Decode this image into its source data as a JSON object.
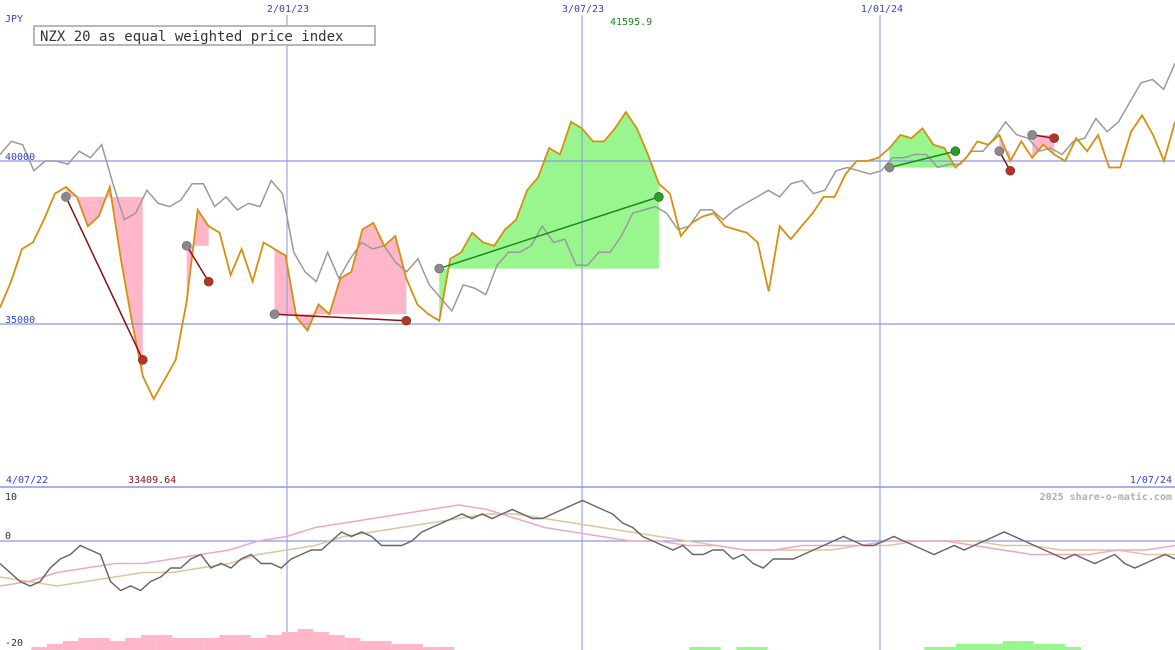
{
  "header": {
    "title": "NZX 20 as equal weighted price index",
    "currency": "JPY",
    "watermark": "2025 share-o-matic.com",
    "max_label": "41595.9",
    "min_label": "33409.64"
  },
  "colors": {
    "price_line": "#d4900e",
    "compare_line": "#9a9a9a",
    "grid_line": "#8a96e8",
    "gain_fill": "#99f68f",
    "loss_fill": "#ffb6c8",
    "max_label": "#1a8a1a",
    "min_label": "#8a1010",
    "axis_label": "#3344cc",
    "osc_dark": "#666666",
    "osc_pink": "#f0a8c0",
    "osc_tan": "#e0c49a"
  },
  "chart_data": [
    {
      "type": "line",
      "title": "NZX 20 as equal weighted price index",
      "ylabel": "JPY",
      "x_ticks": [
        "2/01/23",
        "3/07/23",
        "1/01/24"
      ],
      "x_range": [
        "4/07/22",
        "1/07/24"
      ],
      "y_ticks": [
        35000,
        40000
      ],
      "ylim": [
        32000,
        44800
      ],
      "annotations": [
        {
          "text": "41595.9",
          "kind": "max"
        },
        {
          "text": "33409.64",
          "kind": "min"
        }
      ],
      "series": [
        {
          "key": "price",
          "values": [
            35500,
            36300,
            37300,
            37500,
            38200,
            39000,
            39200,
            38900,
            38000,
            38300,
            39200,
            37000,
            35100,
            33400,
            32700,
            33300,
            33900,
            35700,
            38500,
            38000,
            37800,
            36500,
            37300,
            36300,
            37500,
            37300,
            37100,
            35200,
            34800,
            35600,
            35300,
            36400,
            36600,
            37900,
            38100,
            37400,
            37700,
            36400,
            35600,
            35300,
            35100,
            37000,
            37200,
            37800,
            37500,
            37400,
            37900,
            38200,
            39100,
            39500,
            40400,
            40200,
            41200,
            41000,
            40600,
            40600,
            41000,
            41500,
            41000,
            40200,
            39300,
            39000,
            37700,
            38100,
            38300,
            38400,
            38000,
            37900,
            37800,
            37500,
            36000,
            38000,
            37600,
            38000,
            38400,
            38900,
            38900,
            39600,
            40000,
            40000,
            40100,
            40400,
            40800,
            40700,
            41000,
            40500,
            40400,
            39800,
            40100,
            40600,
            40500,
            40800,
            40000,
            40600,
            40100,
            40500,
            40200,
            40000,
            40700,
            40300,
            40800,
            39800,
            39800,
            40900,
            41400,
            40800,
            40000,
            41200
          ],
          "color": "#d4900e"
        },
        {
          "key": "compare",
          "values": [
            40200,
            40600,
            40500,
            39700,
            40000,
            40000,
            39900,
            40300,
            40100,
            40500,
            39300,
            38200,
            38400,
            39100,
            38700,
            38600,
            38800,
            39300,
            39300,
            38600,
            38900,
            38500,
            38700,
            38600,
            39400,
            39000,
            37200,
            36600,
            36300,
            37200,
            36400,
            37000,
            37500,
            37300,
            37400,
            36900,
            36600,
            37000,
            36200,
            35800,
            35400,
            36200,
            36100,
            35900,
            36800,
            37200,
            37200,
            37400,
            38000,
            37500,
            37600,
            36800,
            36800,
            37200,
            37200,
            37700,
            38400,
            38500,
            38600,
            38400,
            37900,
            38000,
            38500,
            38500,
            38200,
            38500,
            38700,
            38900,
            39100,
            38900,
            39300,
            39400,
            39000,
            39100,
            39700,
            39800,
            39700,
            39600,
            39700,
            40100,
            40100,
            40200,
            40200,
            39800,
            39900,
            39900,
            40300,
            40300,
            40700,
            41200,
            40800,
            40700,
            40300,
            40400,
            40200,
            40600,
            40700,
            41300,
            40900,
            41200,
            41800,
            42400,
            42500,
            42200,
            43000
          ]
        }
      ],
      "trades": [
        {
          "start": 38900,
          "end": 33900,
          "result": "loss"
        },
        {
          "start": 37400,
          "end": 36300,
          "result": "loss"
        },
        {
          "start": 35300,
          "end": 35100,
          "result": "loss"
        },
        {
          "start": 36700,
          "end": 38900,
          "result": "gain"
        },
        {
          "start": 39800,
          "end": 40300,
          "result": "gain"
        },
        {
          "start": 40300,
          "end": 39700,
          "result": "loss"
        },
        {
          "start": 40800,
          "end": 40700,
          "result": "loss"
        }
      ]
    },
    {
      "type": "line",
      "title": "",
      "y_ticks": [
        10,
        0,
        -20
      ],
      "ylim": [
        -21,
        12
      ],
      "series": [
        {
          "key": "oscillator",
          "color": "#666666",
          "values": [
            -5,
            -7,
            -9,
            -10,
            -9,
            -6,
            -4,
            -3,
            -1,
            -2,
            -3,
            -9,
            -11,
            -10,
            -11,
            -9,
            -8,
            -6,
            -6,
            -4,
            -3,
            -6,
            -5,
            -6,
            -4,
            -3,
            -5,
            -5,
            -6,
            -4,
            -3,
            -2,
            -2,
            0,
            2,
            1,
            2,
            1,
            -1,
            -1,
            -1,
            0,
            2,
            3,
            4,
            5,
            6,
            5,
            6,
            5,
            6,
            7,
            6,
            5,
            5,
            6,
            7,
            8,
            9,
            8,
            7,
            6,
            4,
            3,
            1,
            0,
            -1,
            -2,
            -1,
            -3,
            -3,
            -2,
            -2,
            -4,
            -3,
            -5,
            -6,
            -4,
            -4,
            -4,
            -3,
            -2,
            -1,
            0,
            1,
            0,
            -1,
            -1,
            0,
            1,
            0,
            -1,
            -2,
            -3,
            -2,
            -1,
            -2,
            -1,
            0,
            1,
            2,
            1,
            0,
            -1,
            -2,
            -3,
            -4,
            -3,
            -4,
            -5,
            -4,
            -3,
            -5,
            -6,
            -5,
            -4,
            -3,
            -4
          ]
        },
        {
          "key": "signal-pink",
          "color": "#f0a8c0",
          "values": [
            -10,
            -9,
            -7,
            -6,
            -5,
            -5,
            -4,
            -3,
            -2,
            0,
            1,
            3,
            4,
            5,
            6,
            7,
            8,
            7,
            5,
            3,
            2,
            1,
            0,
            0,
            -1,
            -1,
            -2,
            -2,
            -1,
            -1,
            -1,
            0,
            0,
            0,
            -1,
            -2,
            -3,
            -3,
            -3,
            -2,
            -2,
            -1
          ]
        },
        {
          "key": "signal-tan",
          "color": "#e0c49a",
          "values": [
            -8,
            -9,
            -10,
            -9,
            -8,
            -7,
            -7,
            -6,
            -5,
            -3,
            -2,
            -1,
            1,
            2,
            3,
            4,
            5,
            6,
            6,
            5,
            4,
            3,
            2,
            1,
            0,
            -1,
            -2,
            -2,
            -2,
            -2,
            -1,
            -1,
            0,
            0,
            0,
            -1,
            -1,
            -2,
            -2,
            -2,
            -3,
            -3
          ]
        }
      ]
    }
  ]
}
